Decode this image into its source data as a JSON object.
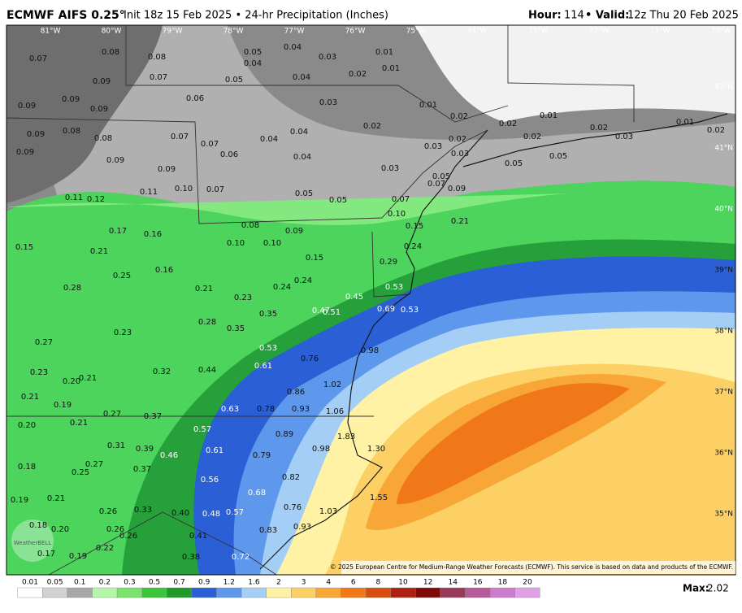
{
  "header": {
    "title": "ECMWF AIFS 0.25°",
    "subtitle": "Init 18z 15 Feb 2025 • 24-hr Precipitation (Inches)",
    "hour_label": "Hour:",
    "hour": "114",
    "valid_label": "• Valid:",
    "valid": "12z Thu 20 Feb 2025"
  },
  "map": {
    "longitudes": [
      "81°W",
      "80°W",
      "79°W",
      "78°W",
      "77°W",
      "76°W",
      "75°W",
      "74°W",
      "73°W",
      "72°W",
      "71°W",
      "70°W"
    ],
    "latitudes": [
      "42°N",
      "41°N",
      "40°N",
      "39°N",
      "38°N",
      "37°N",
      "36°N",
      "35°N"
    ],
    "point_labels": [
      "0.07",
      "0.08",
      "0.08",
      "0.05",
      "0.04",
      "0.04",
      "0.03",
      "0.01",
      "0.01",
      "0.09",
      "0.07",
      "0.05",
      "0.04",
      "0.02",
      "0.09",
      "0.09",
      "0.09",
      "0.06",
      "0.03",
      "0.01",
      "0.09",
      "0.08",
      "0.08",
      "0.07",
      "0.07",
      "0.04",
      "0.04",
      "0.02",
      "0.02",
      "0.02",
      "0.01",
      "0.02",
      "0.01",
      "0.02",
      "0.09",
      "0.09",
      "0.06",
      "0.04",
      "0.03",
      "0.03",
      "0.02",
      "0.02",
      "0.03",
      "0.05",
      "0.05",
      "0.09",
      "0.03",
      "0.05",
      "0.07",
      "0.09",
      "0.11",
      "0.12",
      "0.11",
      "0.10",
      "0.07",
      "0.05",
      "0.05",
      "0.07",
      "0.10",
      "0.08",
      "0.09",
      "0.15",
      "0.21",
      "0.17",
      "0.16",
      "0.10",
      "0.10",
      "0.15",
      "0.21",
      "0.24",
      "0.15",
      "0.16",
      "0.25",
      "0.29",
      "0.24",
      "0.28",
      "0.21",
      "0.23",
      "0.24",
      "0.53",
      "0.45",
      "0.35",
      "0.47",
      "0.51",
      "0.69",
      "0.53",
      "0.28",
      "0.35",
      "0.23",
      "0.27",
      "0.53",
      "0.76",
      "0.98",
      "0.44",
      "0.61",
      "0.32",
      "0.23",
      "0.20",
      "0.21",
      "1.02",
      "0.86",
      "0.21",
      "0.19",
      "0.63",
      "0.78",
      "0.93",
      "1.06",
      "0.27",
      "0.37",
      "0.20",
      "0.21",
      "0.57",
      "0.89",
      "1.83",
      "0.31",
      "0.39",
      "0.61",
      "0.79",
      "0.98",
      "1.30",
      "0.46",
      "0.18",
      "0.27",
      "0.25",
      "0.37",
      "0.82",
      "0.56",
      "0.68",
      "0.19",
      "0.21",
      "1.55",
      "0.26",
      "0.33",
      "0.40",
      "0.48",
      "0.57",
      "0.76",
      "1.03",
      "0.18",
      "0.20",
      "0.26",
      "0.26",
      "0.83",
      "0.93",
      "0.41",
      "0.17",
      "0.19",
      "0.22",
      "0.38",
      "0.72"
    ],
    "logo": "WeatherBELL",
    "attribution": "© 2025 European Centre for Medium-Range Weather Forecasts (ECMWF). This service is based on data and products of the ECMWF."
  },
  "colorbar": {
    "ticks": [
      0.01,
      0.05,
      0.1,
      0.2,
      0.3,
      0.5,
      0.7,
      0.9,
      1.2,
      1.6,
      2,
      3,
      4,
      6,
      8,
      10,
      12,
      14,
      16,
      18,
      20
    ],
    "colors": [
      "#ffffff",
      "#d2d2d2",
      "#a8a8a8",
      "#b4f5a8",
      "#78e46c",
      "#3cc43a",
      "#1f9a2a",
      "#2a5fd6",
      "#5e98ec",
      "#a4cef6",
      "#fff2a4",
      "#fcd064",
      "#f8a636",
      "#f07818",
      "#d84c10",
      "#b02010",
      "#800a0a",
      "#9a3a5a",
      "#b65a98",
      "#cc7ccc",
      "#e0a0e6"
    ],
    "max_label": "Max:",
    "max_value": 2.02
  }
}
